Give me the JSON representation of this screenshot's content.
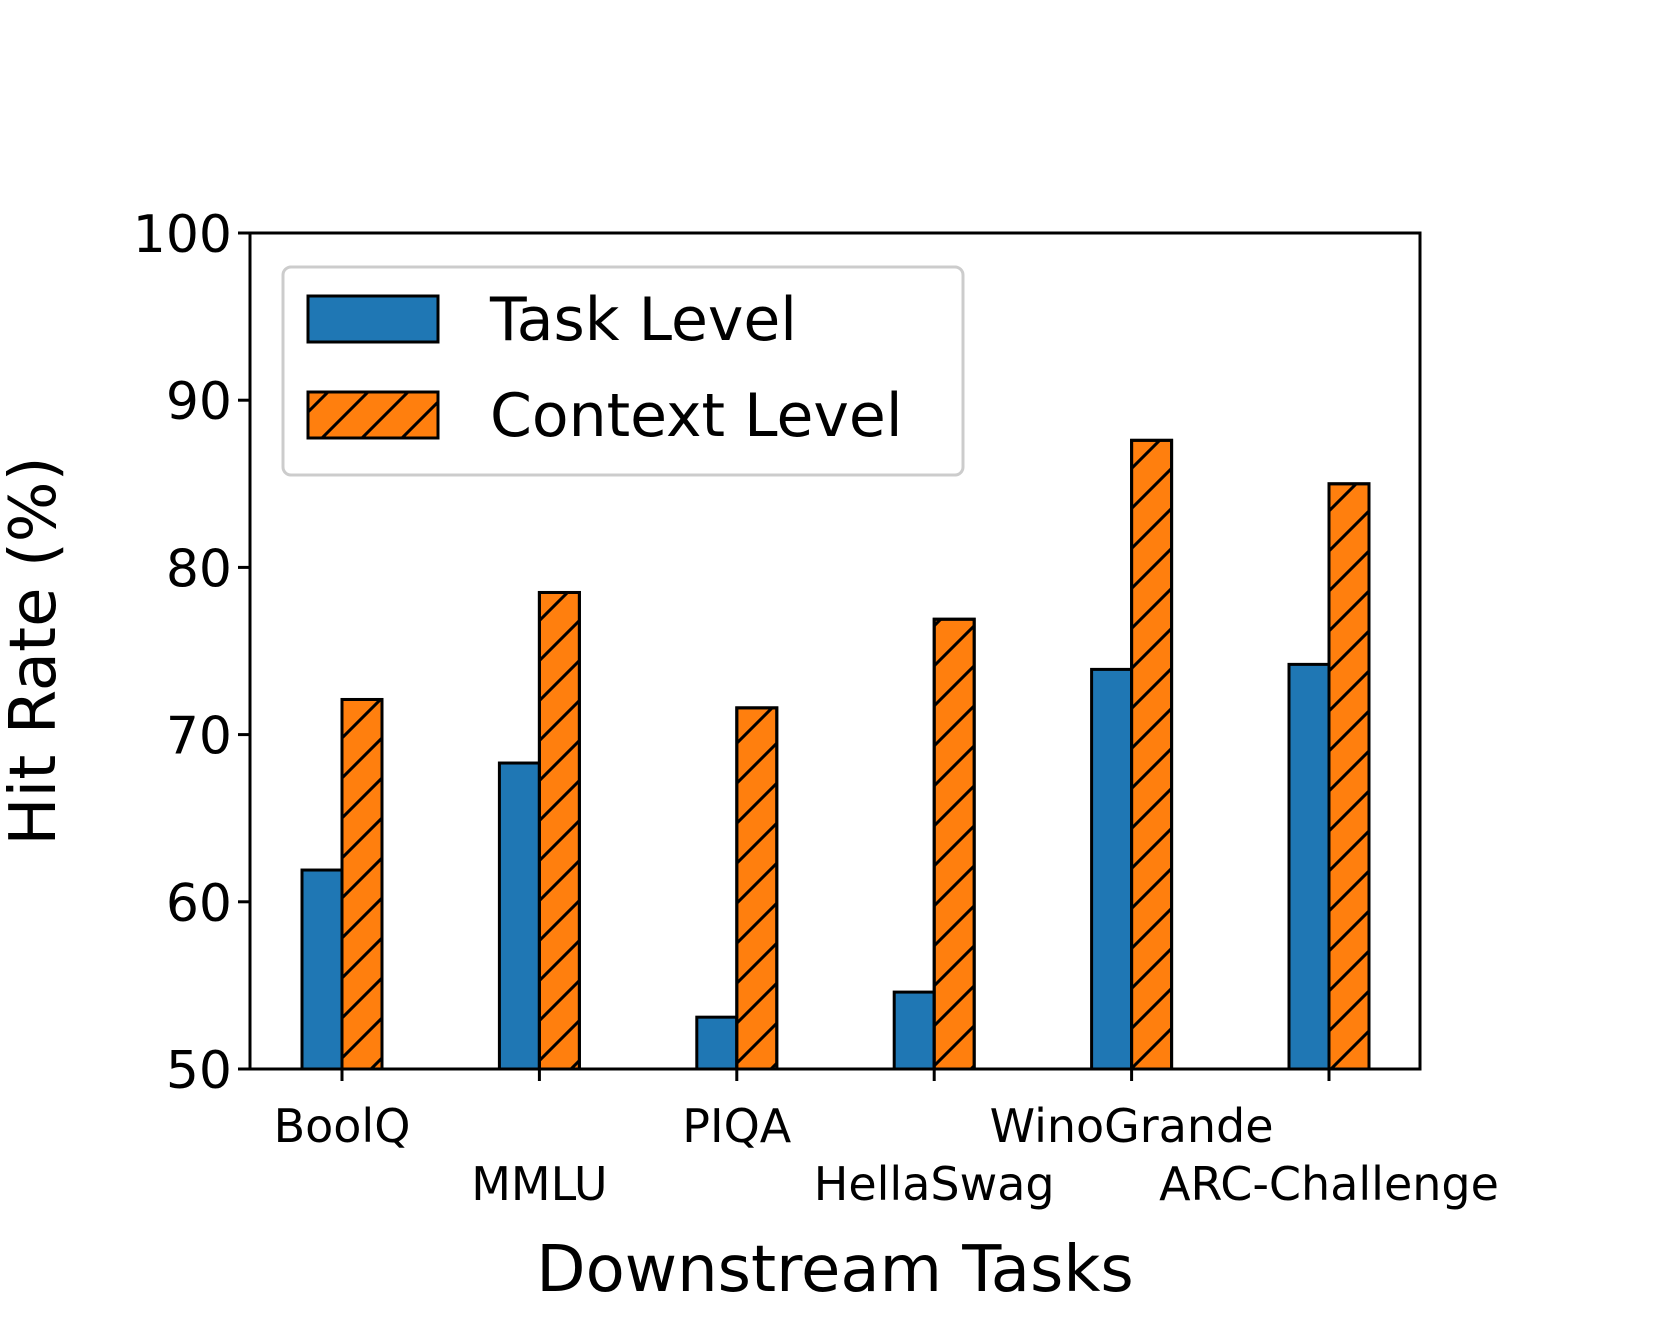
{
  "chart_data": {
    "type": "bar",
    "title": "",
    "xlabel": "Downstream Tasks",
    "ylabel": "Hit Rate (%)",
    "ylim": [
      50,
      100
    ],
    "yticks": [
      50,
      60,
      70,
      80,
      90,
      100
    ],
    "categories": [
      "BoolQ",
      "MMLU",
      "PIQA",
      "HellaSwag",
      "WinoGrande",
      "ARC-Challenge"
    ],
    "series": [
      {
        "name": "Task Level",
        "color": "#1f77b4",
        "hatch": "none",
        "values": [
          61.9,
          68.3,
          53.1,
          54.6,
          73.9,
          74.2
        ]
      },
      {
        "name": "Context Level",
        "color": "#ff7f0e",
        "hatch": "diagonal",
        "values": [
          72.1,
          78.5,
          71.6,
          76.9,
          87.6,
          85.0
        ]
      }
    ],
    "legend_position": "upper-left",
    "grid": false
  }
}
